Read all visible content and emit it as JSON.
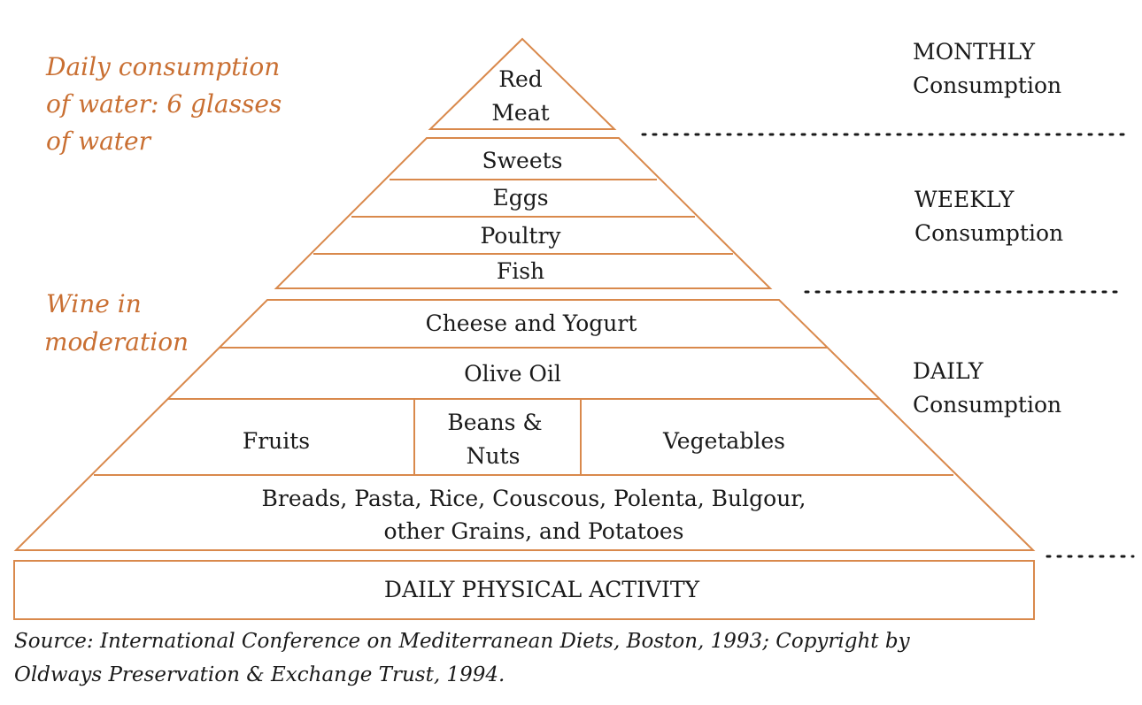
{
  "pyramid": {
    "top": {
      "lines": [
        "Red",
        "Meat"
      ]
    },
    "weekly": {
      "items": [
        "Sweets",
        "Eggs",
        "Poultry",
        "Fish"
      ]
    },
    "daily": {
      "cheese": "Cheese and Yogurt",
      "oil": "Olive Oil",
      "fruits": "Fruits",
      "beans": [
        "Beans &",
        "Nuts"
      ],
      "vegetables": "Vegetables",
      "grains": [
        "Breads, Pasta, Rice, Couscous, Polenta, Bulgour,",
        "other Grains, and Potatoes"
      ]
    },
    "base": "DAILY PHYSICAL ACTIVITY"
  },
  "frequency": {
    "monthly": [
      "MONTHLY",
      "Consumption"
    ],
    "weekly": [
      "WEEKLY",
      "Consumption"
    ],
    "daily": [
      "DAILY",
      "Consumption"
    ]
  },
  "notes": {
    "water": [
      "Daily consumption",
      "of water: 6 glasses",
      "of water"
    ],
    "wine": [
      "Wine in",
      "moderation"
    ]
  },
  "source": [
    "Source: International Conference on Mediterranean Diets, Boston, 1993; Copyright by",
    "Oldways Preservation & Exchange Trust, 1994."
  ],
  "colors": {
    "accent": "#c96f32",
    "outline": "#d9894c",
    "text": "#1a1a1a"
  }
}
